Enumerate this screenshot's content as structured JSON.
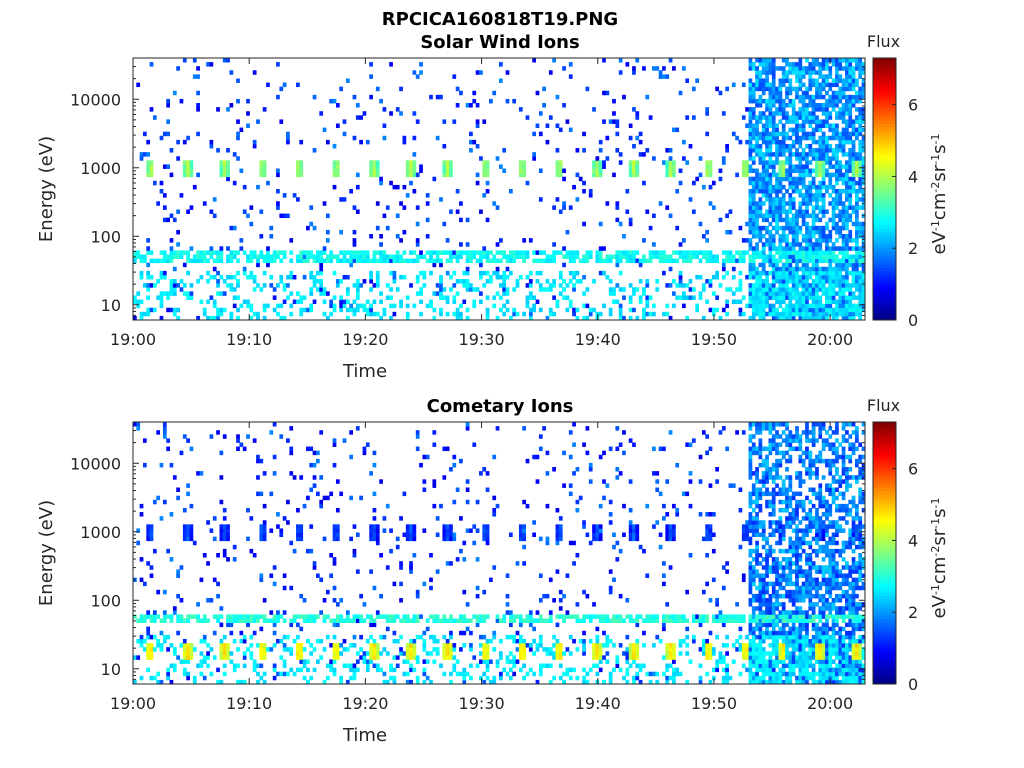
{
  "figure": {
    "title": "RPCICA160818T19.PNG"
  },
  "chart_data": [
    {
      "type": "heatmap",
      "title": "Solar Wind Ions",
      "xlabel": "Time",
      "ylabel": "Energy (eV)",
      "x_range": [
        "19:00",
        "20:03"
      ],
      "x_ticks": [
        "19:00",
        "19:10",
        "19:20",
        "19:30",
        "19:40",
        "19:50",
        "20:00"
      ],
      "y_scale": "log",
      "y_range": [
        6,
        40000
      ],
      "y_ticks": [
        "10",
        "100",
        "1000",
        "10000"
      ],
      "colorbar": {
        "title": "Flux",
        "label": "eV-1cm-2sr-1s-1",
        "range": [
          0,
          7.3
        ],
        "ticks": [
          "0",
          "2",
          "4",
          "6"
        ],
        "colormap": "jet"
      },
      "features": [
        {
          "description": "periodic peaks",
          "energy_eV": 1000,
          "intensity": 4.0,
          "period_min": 3.2
        },
        {
          "description": "continuous band",
          "energy_eV": 50,
          "intensity": 2.8
        },
        {
          "description": "enhanced flux interval",
          "start": "19:53",
          "end": "20:03",
          "intensity": 2.0
        }
      ],
      "grid": false
    },
    {
      "type": "heatmap",
      "title": "Cometary Ions",
      "xlabel": "Time",
      "ylabel": "Energy (eV)",
      "x_range": [
        "19:00",
        "20:03"
      ],
      "x_ticks": [
        "19:00",
        "19:10",
        "19:20",
        "19:30",
        "19:40",
        "19:50",
        "20:00"
      ],
      "y_scale": "log",
      "y_range": [
        6,
        40000
      ],
      "y_ticks": [
        "10",
        "100",
        "1000",
        "10000"
      ],
      "colorbar": {
        "title": "Flux",
        "label": "eV-1cm-2sr-1s-1",
        "range": [
          0,
          7.3
        ],
        "ticks": [
          "0",
          "2",
          "4",
          "6"
        ],
        "colormap": "jet"
      },
      "features": [
        {
          "description": "periodic peaks",
          "energy_eV": 18,
          "intensity": 4.8,
          "period_min": 3.2
        },
        {
          "description": "periodic peaks",
          "energy_eV": 1000,
          "intensity": 1.6,
          "period_min": 3.2
        },
        {
          "description": "continuous band",
          "energy_eV": 55,
          "intensity": 3.0
        },
        {
          "description": "enhanced flux interval",
          "start": "19:53",
          "end": "20:03",
          "intensity": 1.8
        }
      ],
      "grid": false
    }
  ]
}
